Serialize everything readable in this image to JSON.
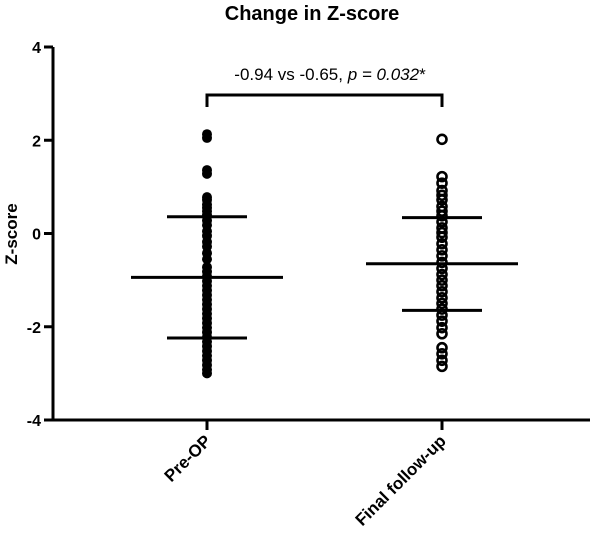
{
  "chart_data": {
    "type": "scatter",
    "title": "Change in Z-score",
    "xlabel": "",
    "ylabel": "Z-score",
    "ylim": [
      -4,
      4
    ],
    "yticks": [
      4,
      2,
      0,
      -2,
      -4
    ],
    "categories": [
      "Pre-OP",
      "Final follow-up"
    ],
    "grid": false,
    "series": [
      {
        "category": "Pre-OP",
        "marker": "filled",
        "mean": -0.94,
        "sd_upper": 0.36,
        "sd_lower": -2.24,
        "values": [
          2.13,
          2.05,
          1.36,
          1.28,
          0.78,
          0.72,
          0.62,
          0.55,
          0.48,
          0.4,
          0.28,
          0.18,
          0.05,
          -0.05,
          -0.18,
          -0.28,
          -0.42,
          -0.55,
          -0.72,
          -0.82,
          -0.92,
          -1.02,
          -1.12,
          -1.22,
          -1.32,
          -1.42,
          -1.52,
          -1.62,
          -1.72,
          -1.82,
          -1.92,
          -2.02,
          -2.12,
          -2.22,
          -2.32,
          -2.42,
          -2.52,
          -2.62,
          -2.72,
          -2.82,
          -2.92,
          -3.0
        ]
      },
      {
        "category": "Final follow-up",
        "marker": "open",
        "mean": -0.65,
        "sd_upper": 0.34,
        "sd_lower": -1.65,
        "values": [
          2.02,
          1.22,
          1.08,
          0.92,
          0.82,
          0.72,
          0.58,
          0.48,
          0.38,
          0.25,
          0.12,
          0.02,
          -0.08,
          -0.22,
          -0.35,
          -0.48,
          -0.62,
          -0.75,
          -0.88,
          -1.0,
          -1.12,
          -1.25,
          -1.38,
          -1.5,
          -1.62,
          -1.75,
          -1.88,
          -2.02,
          -2.15,
          -2.45,
          -2.58,
          -2.72,
          -2.85
        ]
      }
    ],
    "annotation": {
      "prefix": "-0.94 vs -0.65, ",
      "p_text": "p = 0.032",
      "suffix": "*"
    }
  }
}
